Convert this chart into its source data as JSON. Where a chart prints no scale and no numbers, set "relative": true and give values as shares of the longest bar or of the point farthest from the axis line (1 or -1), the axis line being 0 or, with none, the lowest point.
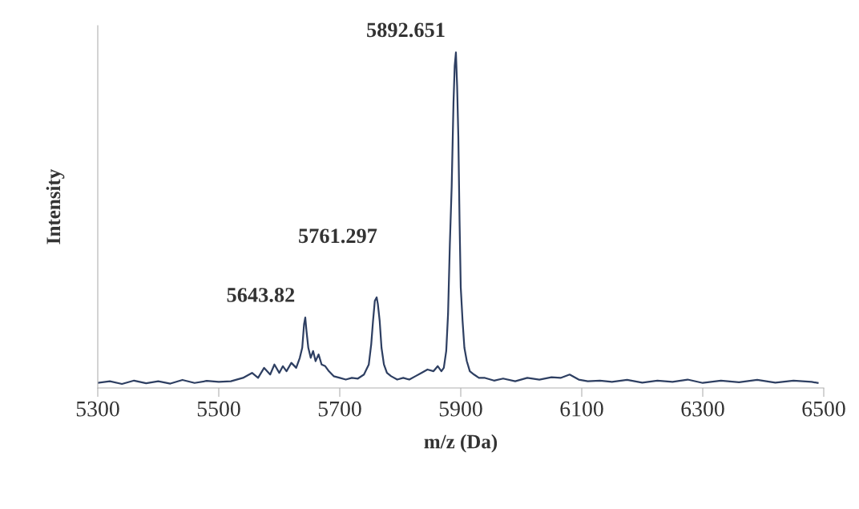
{
  "chart_data": {
    "type": "line",
    "relative": true,
    "xlabel": "m/z (Da)",
    "ylabel": "Intensity",
    "xlim": [
      5300,
      6500
    ],
    "xticks": [
      5300,
      5500,
      5700,
      5900,
      6100,
      6300,
      6500
    ],
    "tick_labels": "x",
    "grid": false,
    "legend": false,
    "marker": "none",
    "line_style": "solid",
    "series": [
      {
        "color": "#2e3f62",
        "x": [
          5300,
          5320,
          5340,
          5360,
          5380,
          5400,
          5420,
          5440,
          5460,
          5480,
          5500,
          5520,
          5540,
          5555,
          5565,
          5575,
          5585,
          5592,
          5600,
          5606,
          5612,
          5620,
          5628,
          5634,
          5638,
          5641,
          5643,
          5645,
          5648,
          5652,
          5656,
          5660,
          5665,
          5670,
          5676,
          5682,
          5690,
          5700,
          5710,
          5720,
          5730,
          5740,
          5748,
          5752,
          5755,
          5758,
          5761,
          5763,
          5766,
          5769,
          5773,
          5778,
          5785,
          5795,
          5805,
          5815,
          5825,
          5835,
          5845,
          5855,
          5862,
          5868,
          5872,
          5876,
          5879,
          5882,
          5885,
          5888,
          5890,
          5892,
          5894,
          5896,
          5898,
          5900,
          5903,
          5906,
          5910,
          5915,
          5922,
          5930,
          5940,
          5955,
          5970,
          5990,
          6010,
          6030,
          6050,
          6065,
          6080,
          6095,
          6110,
          6130,
          6150,
          6175,
          6200,
          6225,
          6250,
          6275,
          6300,
          6330,
          6360,
          6390,
          6420,
          6450,
          6480,
          6490
        ],
        "values": [
          0.015,
          0.02,
          0.012,
          0.022,
          0.014,
          0.02,
          0.013,
          0.024,
          0.015,
          0.021,
          0.018,
          0.02,
          0.03,
          0.045,
          0.03,
          0.06,
          0.04,
          0.07,
          0.045,
          0.065,
          0.05,
          0.075,
          0.06,
          0.09,
          0.12,
          0.19,
          0.21,
          0.17,
          0.12,
          0.09,
          0.11,
          0.08,
          0.1,
          0.07,
          0.065,
          0.05,
          0.035,
          0.03,
          0.025,
          0.03,
          0.028,
          0.04,
          0.07,
          0.13,
          0.2,
          0.26,
          0.27,
          0.25,
          0.2,
          0.12,
          0.07,
          0.045,
          0.035,
          0.025,
          0.03,
          0.025,
          0.035,
          0.045,
          0.055,
          0.05,
          0.065,
          0.05,
          0.06,
          0.11,
          0.22,
          0.43,
          0.6,
          0.85,
          0.96,
          1.0,
          0.9,
          0.75,
          0.5,
          0.3,
          0.2,
          0.12,
          0.08,
          0.05,
          0.04,
          0.03,
          0.03,
          0.022,
          0.028,
          0.02,
          0.03,
          0.025,
          0.032,
          0.03,
          0.04,
          0.025,
          0.02,
          0.022,
          0.018,
          0.024,
          0.016,
          0.022,
          0.018,
          0.025,
          0.015,
          0.022,
          0.017,
          0.024,
          0.016,
          0.022,
          0.018,
          0.015
        ]
      }
    ],
    "annotations": [
      {
        "text": "5643.82",
        "x": 5643,
        "y": 0.21
      },
      {
        "text": "5761.297",
        "x": 5761,
        "y": 0.27
      },
      {
        "text": "5892.651",
        "x": 5892,
        "y": 1.0
      }
    ]
  }
}
